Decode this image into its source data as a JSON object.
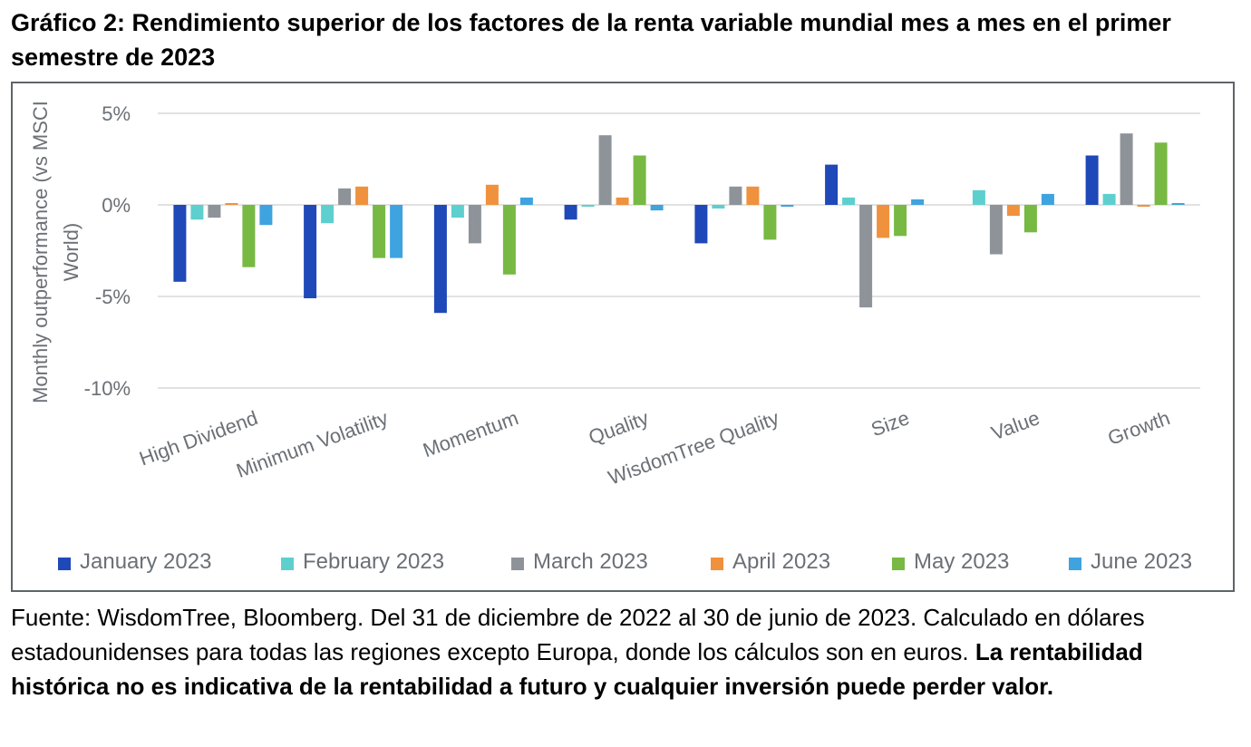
{
  "title": "Gráfico 2: Rendimiento superior de los factores de la renta variable mundial mes a mes en el primer semestre de 2023",
  "chart_data": {
    "type": "bar",
    "ylabel": "Monthly outperformance (vs MSCI World)",
    "ylim": [
      -10,
      5
    ],
    "yticks": [
      5,
      0,
      -5,
      -10
    ],
    "ytick_labels": [
      "5%",
      "0%",
      "-5%",
      "-10%"
    ],
    "grid": true,
    "legend_position": "bottom",
    "categories": [
      "High Dividend",
      "Minimum Volatility",
      "Momentum",
      "Quality",
      "WisdomTree Quality",
      "Size",
      "Value",
      "Growth"
    ],
    "series": [
      {
        "name": "January 2023",
        "color": "#1f48b8",
        "values": [
          -4.2,
          -5.1,
          -5.9,
          -0.8,
          -2.1,
          2.2,
          0.0,
          2.7
        ]
      },
      {
        "name": "February 2023",
        "color": "#5ecfcf",
        "values": [
          -0.8,
          -1.0,
          -0.7,
          -0.1,
          -0.2,
          0.4,
          0.8,
          0.6
        ]
      },
      {
        "name": "March 2023",
        "color": "#8e9399",
        "values": [
          -0.7,
          0.9,
          -2.1,
          3.8,
          1.0,
          -5.6,
          -2.7,
          3.9
        ]
      },
      {
        "name": "April 2023",
        "color": "#f0913d",
        "values": [
          0.1,
          1.0,
          1.1,
          0.4,
          1.0,
          -1.8,
          -0.6,
          -0.1
        ]
      },
      {
        "name": "May 2023",
        "color": "#77b943",
        "values": [
          -3.4,
          -2.9,
          -3.8,
          2.7,
          -1.9,
          -1.7,
          -1.5,
          3.4
        ]
      },
      {
        "name": "June 2023",
        "color": "#3fa3df",
        "values": [
          -1.1,
          -2.9,
          0.4,
          -0.3,
          -0.1,
          0.3,
          0.6,
          0.1
        ]
      }
    ]
  },
  "caption": {
    "normal": "Fuente: WisdomTree, Bloomberg. Del 31 de diciembre de 2022 al 30 de junio de 2023. Calculado en dólares estadounidenses para todas las regiones excepto Europa, donde los cálculos son en euros.",
    "bold": "La rentabilidad histórica no es indicativa de la rentabilidad a futuro y cualquier inversión puede perder valor."
  }
}
